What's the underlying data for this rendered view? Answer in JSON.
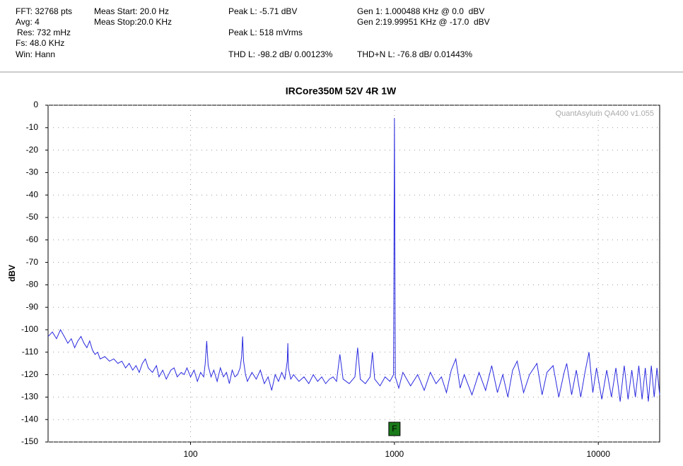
{
  "chart_data": {
    "type": "line",
    "annotations": [
      "FFT: 32768 pts",
      "Avg: 4",
      "Res: 732 mHz",
      "Fs: 48.0 KHz",
      "Win: Hann",
      "Meas Start: 20.0 Hz",
      "Meas Stop:20.0 KHz",
      "Peak L: -5.71 dBV",
      "Peak L: 518 mVrms",
      "THD L: -98.2 dB/ 0.00123%",
      "Gen 1: 1.000488 KHz @ 0.0  dBV",
      "Gen 2:19.99951 KHz @ -17.0  dBV",
      "THD+N L: -76.8 dB/ 0.01443%"
    ],
    "title": "IRCore350M 52V 4R 1W",
    "watermark": "QuantAsylum QA400 v1.055",
    "y_label": "dBV",
    "marker": {
      "x": 1000,
      "label": "F",
      "color": "#1a7a1a"
    },
    "xscale": "log",
    "xlim": [
      20,
      20000
    ],
    "xticks": [
      100,
      1000,
      10000
    ],
    "ylim": [
      -150,
      0
    ],
    "yticks": [
      0,
      -10,
      -20,
      -30,
      -40,
      -50,
      -60,
      -70,
      -80,
      -90,
      -100,
      -110,
      -120,
      -130,
      -140,
      -150
    ],
    "grid": true,
    "x": [
      20,
      21,
      22,
      23,
      24,
      25,
      26,
      27,
      28,
      29,
      30,
      31,
      32,
      33,
      34,
      35,
      36,
      38,
      40,
      42,
      44,
      46,
      48,
      50,
      52,
      54,
      56,
      58,
      60,
      62,
      65,
      68,
      70,
      73,
      76,
      80,
      83,
      86,
      90,
      93,
      96,
      100,
      104,
      108,
      112,
      116,
      118,
      120,
      122,
      126,
      130,
      135,
      140,
      145,
      150,
      155,
      160,
      165,
      170,
      175,
      178,
      180,
      182,
      186,
      190,
      200,
      210,
      220,
      230,
      240,
      250,
      260,
      270,
      280,
      290,
      298,
      300,
      302,
      310,
      320,
      340,
      360,
      380,
      400,
      420,
      440,
      460,
      480,
      500,
      520,
      540,
      560,
      600,
      640,
      660,
      680,
      720,
      760,
      780,
      800,
      850,
      900,
      950,
      990,
      1000,
      1010,
      1050,
      1100,
      1200,
      1300,
      1400,
      1500,
      1600,
      1700,
      1800,
      1900,
      2000,
      2100,
      2200,
      2400,
      2600,
      2800,
      3000,
      3200,
      3400,
      3600,
      3800,
      4000,
      4300,
      4600,
      5000,
      5300,
      5600,
      6000,
      6400,
      6800,
      7000,
      7400,
      7800,
      8200,
      8600,
      9000,
      9400,
      9800,
      10400,
      11000,
      11600,
      12200,
      12800,
      13400,
      14000,
      14600,
      15200,
      15800,
      16400,
      17000,
      17600,
      18200,
      18800,
      19400,
      20000
    ],
    "series": [
      {
        "color": "#2a2ae0",
        "values": [
          -103,
          -101,
          -104,
          -100,
          -103,
          -106,
          -104,
          -108,
          -105,
          -103,
          -106,
          -108,
          -105,
          -109,
          -111,
          -110,
          -113,
          -112,
          -114,
          -113,
          -115,
          -114,
          -117,
          -115,
          -118,
          -116,
          -119,
          -115,
          -113,
          -117,
          -119,
          -116,
          -121,
          -118,
          -122,
          -118,
          -117,
          -121,
          -119,
          -120,
          -117,
          -121,
          -118,
          -123,
          -119,
          -121,
          -115,
          -105,
          -116,
          -121,
          -118,
          -123,
          -117,
          -121,
          -119,
          -124,
          -118,
          -121,
          -120,
          -117,
          -112,
          -103,
          -114,
          -120,
          -123,
          -119,
          -122,
          -118,
          -124,
          -121,
          -127,
          -120,
          -123,
          -119,
          -122,
          -114,
          -106,
          -117,
          -122,
          -120,
          -123,
          -121,
          -124,
          -120,
          -123,
          -121,
          -124,
          -122,
          -121,
          -123,
          -111,
          -122,
          -124,
          -121,
          -108,
          -122,
          -124,
          -121,
          -110,
          -122,
          -125,
          -121,
          -123,
          -120,
          -5.7,
          -121,
          -126,
          -119,
          -125,
          -120,
          -127,
          -119,
          -124,
          -121,
          -128,
          -118,
          -113,
          -126,
          -120,
          -129,
          -119,
          -127,
          -116,
          -128,
          -120,
          -130,
          -118,
          -114,
          -128,
          -120,
          -115,
          -129,
          -119,
          -116,
          -130,
          -119,
          -115,
          -129,
          -118,
          -130,
          -119,
          -110,
          -128,
          -117,
          -131,
          -118,
          -130,
          -117,
          -132,
          -116,
          -131,
          -118,
          -130,
          -116,
          -131,
          -117,
          -132,
          -116,
          -130,
          -117,
          -129
        ]
      }
    ]
  }
}
